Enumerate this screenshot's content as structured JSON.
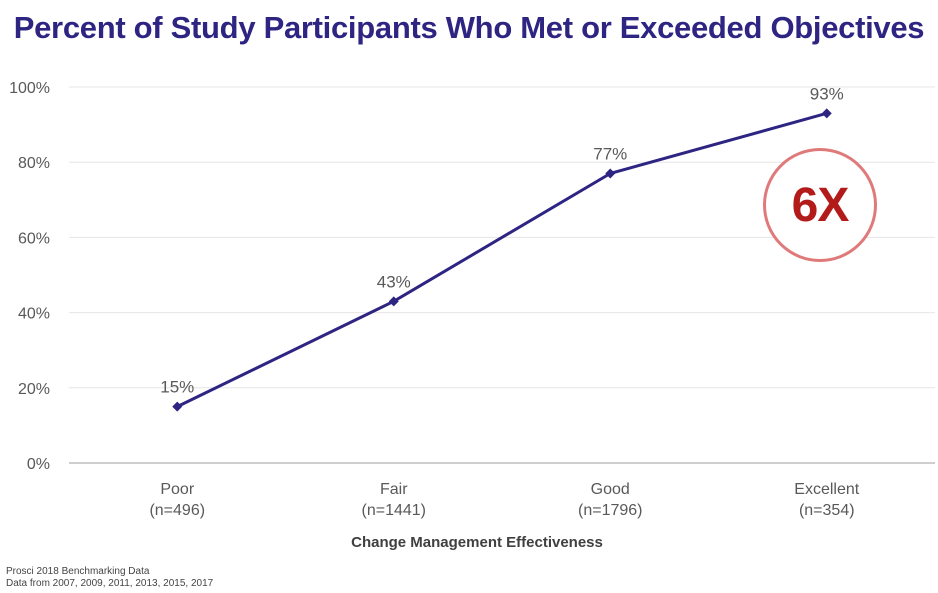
{
  "title": "Percent of Study Participants Who Met or Exceeded Objectives",
  "badge": {
    "text": "6X",
    "color": "#b31b1b"
  },
  "source": {
    "line1": "Prosci 2018 Benchmarking Data",
    "line2": "Data from 2007, 2009, 2011, 2013, 2015,  2017"
  },
  "colors": {
    "line": "#2e2583",
    "title": "#2e2583",
    "grid": "#e6e6e6",
    "axis": "#bfbfbf"
  },
  "chart_data": {
    "type": "line",
    "title": "Percent of Study Participants Who Met or Exceeded Objectives",
    "xlabel": "Change Management Effectiveness",
    "ylabel": "",
    "categories": [
      "Poor",
      "Fair",
      "Good",
      "Excellent"
    ],
    "category_sublabels": [
      "(n=496)",
      "(n=1441)",
      "(n=1796)",
      "(n=354)"
    ],
    "series": [
      {
        "values": [
          15,
          43,
          77,
          93
        ]
      }
    ],
    "data_labels": [
      "15%",
      "43%",
      "77%",
      "93%"
    ],
    "y_ticks": [
      0,
      20,
      40,
      60,
      80,
      100
    ],
    "y_tick_labels": [
      "0%",
      "20%",
      "40%",
      "60%",
      "80%",
      "100%"
    ],
    "ylim": [
      0,
      100
    ],
    "grid": true,
    "legend": "none"
  }
}
